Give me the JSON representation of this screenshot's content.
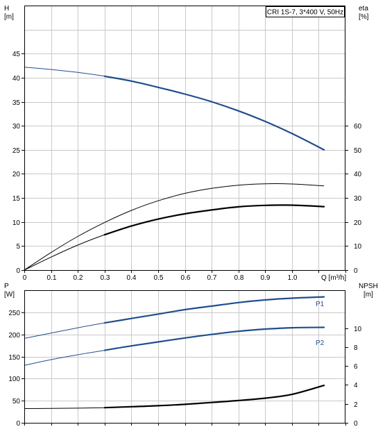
{
  "legend": {
    "text": "CRI 1S-7, 3*400 V, 50Hz"
  },
  "chart_data": [
    {
      "type": "line",
      "panel": "head-efficiency",
      "title": "CRI 1S-7, 3*400 V, 50Hz",
      "xlabel": "Q [m³/h]",
      "ylabel_left_name": "H",
      "ylabel_left_unit": "[m]",
      "ylabel_right_name": "eta",
      "ylabel_right_unit": "[%]",
      "xlim": [
        0,
        1.2
      ],
      "ylim_left": [
        0,
        55
      ],
      "ylim_right": [
        0,
        110
      ],
      "x_ticks": [
        "0",
        "0.1",
        "0.2",
        "0.3",
        "0.4",
        "0.5",
        "0.6",
        "0.7",
        "0.8",
        "0.9",
        "1.0"
      ],
      "y_ticks_left": [
        "0",
        "5",
        "10",
        "15",
        "20",
        "25",
        "30",
        "35",
        "40",
        "45"
      ],
      "y_ticks_right": [
        "0",
        "10",
        "20",
        "30",
        "40",
        "50",
        "60"
      ],
      "grid": true,
      "series": [
        {
          "axis": "left",
          "color": "#1f4e8c",
          "x": [
            0,
            0.1,
            0.2,
            0.3,
            0.4,
            0.5,
            0.6,
            0.7,
            0.8,
            0.9,
            1.0,
            1.12
          ],
          "y": [
            42.2,
            41.7,
            41.1,
            40.3,
            39.3,
            38.0,
            36.6,
            35.0,
            33.1,
            30.9,
            28.4,
            25.0
          ]
        },
        {
          "axis": "right",
          "color": "#000000",
          "x": [
            0,
            0.1,
            0.2,
            0.3,
            0.4,
            0.5,
            0.6,
            0.7,
            0.8,
            0.9,
            1.0,
            1.12
          ],
          "y": [
            0,
            7.3,
            14.0,
            19.8,
            24.8,
            28.8,
            31.9,
            34.0,
            35.3,
            35.9,
            35.8,
            35.0
          ]
        },
        {
          "axis": "right",
          "color": "#000000",
          "x": [
            0,
            0.1,
            0.2,
            0.3,
            0.4,
            0.5,
            0.6,
            0.7,
            0.8,
            0.9,
            1.0,
            1.12
          ],
          "y": [
            0,
            5.4,
            10.4,
            14.7,
            18.3,
            21.2,
            23.4,
            25.0,
            26.3,
            26.9,
            27.0,
            26.4
          ]
        }
      ]
    },
    {
      "type": "line",
      "panel": "power-npsh",
      "xlabel": "",
      "ylabel_left_name": "P",
      "ylabel_left_unit": "[W]",
      "ylabel_right_name": "NPSH",
      "ylabel_right_unit": "[m]",
      "xlim": [
        0,
        1.2
      ],
      "ylim_left": [
        0,
        300
      ],
      "ylim_right": [
        0,
        14
      ],
      "y_ticks_left": [
        "0",
        "50",
        "100",
        "150",
        "200",
        "250"
      ],
      "y_ticks_right": [
        "0",
        "2",
        "4",
        "6",
        "8",
        "10"
      ],
      "grid": true,
      "series": [
        {
          "name": "P1",
          "axis": "left",
          "color": "#1f4e8c",
          "x": [
            0,
            0.1,
            0.2,
            0.3,
            0.4,
            0.5,
            0.6,
            0.7,
            0.8,
            0.9,
            1.0,
            1.12
          ],
          "y": [
            191,
            203,
            215,
            226,
            236,
            246,
            256,
            264,
            272,
            278,
            282,
            285
          ]
        },
        {
          "name": "P2",
          "axis": "left",
          "color": "#1f4e8c",
          "x": [
            0,
            0.1,
            0.2,
            0.3,
            0.4,
            0.5,
            0.6,
            0.7,
            0.8,
            0.9,
            1.0,
            1.12
          ],
          "y": [
            130,
            143,
            154,
            164,
            174,
            183,
            192,
            200,
            207,
            212,
            215,
            216
          ]
        },
        {
          "axis": "right",
          "color": "#000000",
          "x": [
            0,
            0.1,
            0.2,
            0.3,
            0.4,
            0.5,
            0.6,
            0.7,
            0.8,
            0.9,
            1.0,
            1.12
          ],
          "y": [
            1.5,
            1.52,
            1.55,
            1.6,
            1.7,
            1.8,
            1.95,
            2.15,
            2.35,
            2.6,
            3.0,
            3.95
          ]
        }
      ]
    }
  ]
}
